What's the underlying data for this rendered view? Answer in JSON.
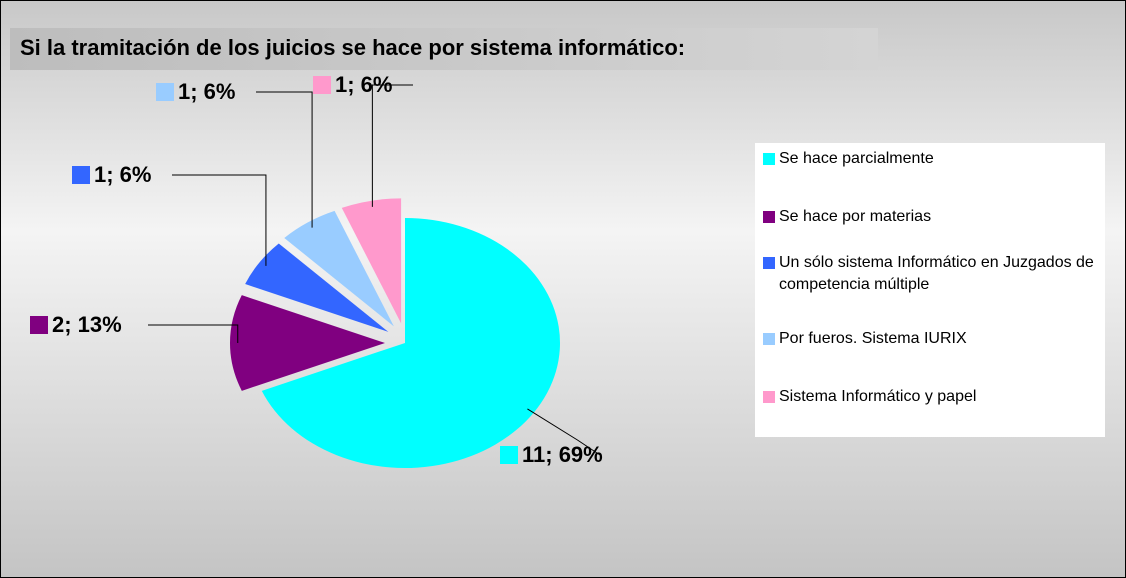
{
  "chart_data": {
    "type": "pie",
    "title": "Si la tramitación de los juicios se hace por sistema informático:",
    "categories": [
      "Se hace parcialmente",
      "Se hace por materias",
      "Un sólo sistema Informático en Juzgados de competencia múltiple",
      "Por fueros. Sistema IURIX",
      "Sistema Informático y papel"
    ],
    "values": [
      11,
      2,
      1,
      1,
      1
    ],
    "value_labels": [
      "11; 69%",
      "2; 13%",
      "1; 6%",
      "1; 6%",
      "1; 6%"
    ],
    "colors": [
      "#00ffff",
      "#800080",
      "#3366ff",
      "#99ccff",
      "#ff99cc"
    ],
    "legend": "right"
  }
}
